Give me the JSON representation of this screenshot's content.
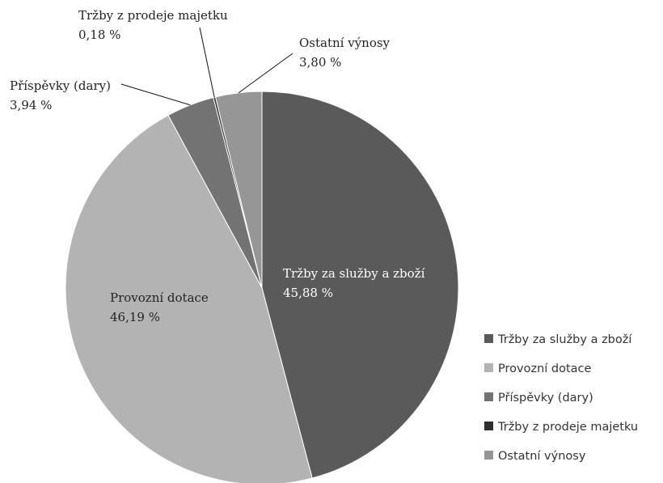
{
  "chart_data": {
    "type": "pie",
    "title": "",
    "slices": [
      {
        "label": "Tržby za služby a zboží",
        "value": 45.88,
        "value_label": "45,88 %",
        "color": "#5a5a5a"
      },
      {
        "label": "Provozní dotace",
        "value": 46.19,
        "value_label": "46,19 %",
        "color": "#b3b3b3"
      },
      {
        "label": "Příspěvky (dary)",
        "value": 3.94,
        "value_label": "3,94 %",
        "color": "#737373"
      },
      {
        "label": "Tržby z prodeje majetku",
        "value": 0.18,
        "value_label": "0,18 %",
        "color": "#2e2e2e"
      },
      {
        "label": "Ostatní výnosy",
        "value": 3.8,
        "value_label": "3,80 %",
        "color": "#969696"
      }
    ],
    "start_angle_deg": 0,
    "direction": "clockwise",
    "legend_position": "right-bottom"
  }
}
